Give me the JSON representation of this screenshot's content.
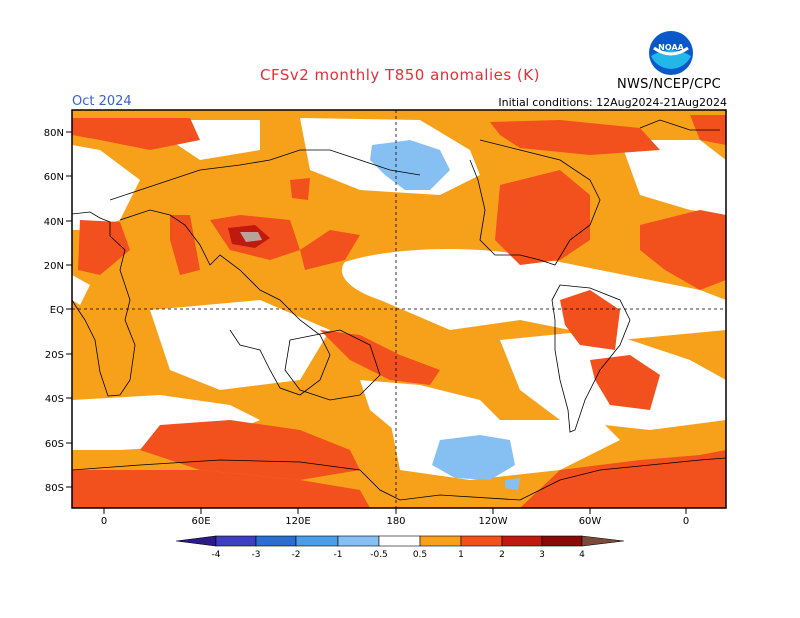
{
  "header": {
    "title": "CFSv2 monthly T850 anomalies (K)",
    "month": "Oct 2024",
    "initial_conditions": "Initial conditions: 12Aug2024-21Aug2024",
    "agency": "NWS/NCEP/CPC",
    "logo_text": "NOAA"
  },
  "map": {
    "lat_labels": [
      "80N",
      "60N",
      "40N",
      "20N",
      "EQ",
      "20S",
      "40S",
      "60S",
      "80S"
    ],
    "lon_labels": [
      "0",
      "60E",
      "120E",
      "180",
      "120W",
      "60W",
      "0"
    ]
  },
  "legend": {
    "values": [
      "-4",
      "-3",
      "-2",
      "-1",
      "-0.5",
      "0.5",
      "1",
      "2",
      "3",
      "4"
    ],
    "colors": {
      "lt_-4": "#2a1a8a",
      "-4_-3": "#3d3fc0",
      "-3_-2": "#2a6fd0",
      "-2_-1": "#4b9de6",
      "-1_-0.5": "#86c0f2",
      "-0.5_0.5": "#ffffff",
      "0.5_1": "#f7a11b",
      "1_2": "#f2501c",
      "2_3": "#c01a10",
      "3_4": "#8a0a0a",
      "gt_4": "#7a4a3a"
    }
  }
}
